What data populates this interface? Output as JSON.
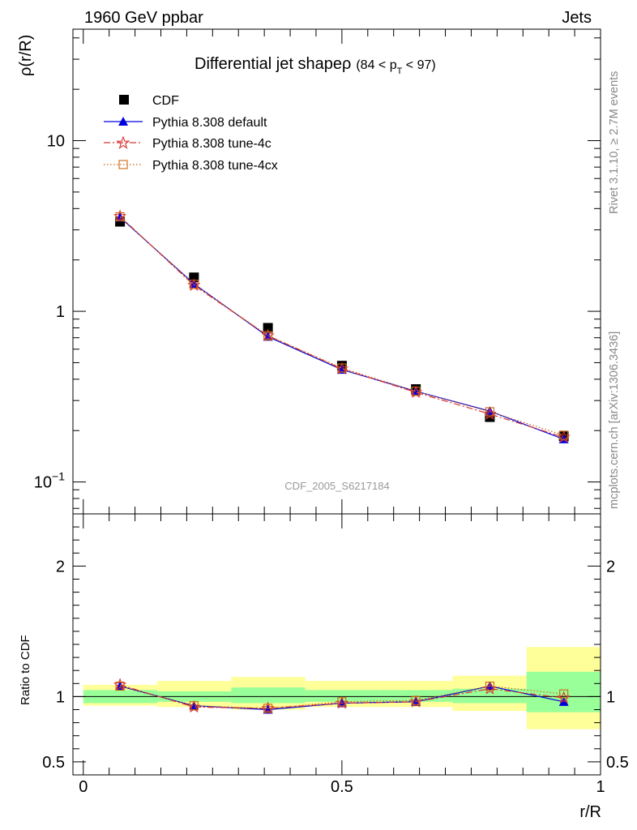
{
  "header": {
    "left": "1960 GeV ppbar",
    "right": "Jets"
  },
  "side": {
    "rivet": "Rivet 3.1.10, ≥ 2.7M events",
    "site": "mcplots.cern.ch [arXiv:1306.3436]"
  },
  "chart_data": [
    {
      "type": "line",
      "title": "Differential jet shapeρ",
      "subtitle_prefix": "(84 < p",
      "subtitle_sub": "T",
      "subtitle_suffix": " < 97)",
      "ylabel": "ρ(r/R)",
      "xlabel": "r/R",
      "watermark": "CDF_2005_S6217184",
      "yscale": "log",
      "xlim": [
        -0.02,
        1.0
      ],
      "ylim": [
        0.065,
        45
      ],
      "grid": false,
      "legend_position": "top-left",
      "yticks": [
        {
          "value": 0.1,
          "base": "10",
          "exp": "−1"
        },
        {
          "value": 1,
          "base": "1",
          "exp": ""
        },
        {
          "value": 10,
          "base": "10",
          "exp": ""
        }
      ],
      "series": [
        {
          "name": "CDF",
          "color": "#000000",
          "marker": "square",
          "line": "none",
          "x": [
            0.071,
            0.214,
            0.357,
            0.5,
            0.643,
            0.786,
            0.929
          ],
          "y": [
            3.35,
            1.58,
            0.8,
            0.48,
            0.35,
            0.24,
            0.185
          ]
        },
        {
          "name": "Pythia 8.308 default",
          "color": "#0000dd",
          "marker": "triangle",
          "line": "solid",
          "x": [
            0.071,
            0.214,
            0.357,
            0.5,
            0.643,
            0.786,
            0.929
          ],
          "y": [
            3.55,
            1.45,
            0.71,
            0.455,
            0.34,
            0.26,
            0.178
          ]
        },
        {
          "name": "Pythia 8.308 tune-4c",
          "color": "#dd3333",
          "marker": "star",
          "line": "dashdot",
          "x": [
            0.071,
            0.214,
            0.357,
            0.5,
            0.643,
            0.786,
            0.929
          ],
          "y": [
            3.6,
            1.42,
            0.72,
            0.46,
            0.335,
            0.25,
            0.183
          ]
        },
        {
          "name": "Pythia 8.308 tune-4cx",
          "color": "#cc6611",
          "marker": "open-square",
          "line": "dotted",
          "x": [
            0.071,
            0.214,
            0.357,
            0.5,
            0.643,
            0.786,
            0.929
          ],
          "y": [
            3.58,
            1.44,
            0.72,
            0.465,
            0.34,
            0.258,
            0.188
          ]
        }
      ]
    },
    {
      "type": "line",
      "ylabel": "Ratio to CDF",
      "xlabel": "r/R",
      "xlim": [
        -0.02,
        1.0
      ],
      "ylim": [
        0.4,
        2.4
      ],
      "yticks": [
        {
          "value": 0.5,
          "label": "0.5"
        },
        {
          "value": 1,
          "label": "1"
        },
        {
          "value": 2,
          "label": "2"
        }
      ],
      "xticks": [
        {
          "value": 0,
          "label": "0"
        },
        {
          "value": 0.5,
          "label": "0.5"
        },
        {
          "value": 1,
          "label": "1"
        }
      ],
      "reference_line": 1,
      "bands": {
        "inner_color": "#99ff99",
        "outer_color": "#ffff99",
        "bins": [
          {
            "lo": 0.0,
            "hi": 0.143,
            "inner": [
              0.95,
              1.05
            ],
            "outer": [
              0.93,
              1.09
            ]
          },
          {
            "lo": 0.143,
            "hi": 0.286,
            "inner": [
              0.96,
              1.04
            ],
            "outer": [
              0.92,
              1.12
            ]
          },
          {
            "lo": 0.286,
            "hi": 0.429,
            "inner": [
              0.95,
              1.07
            ],
            "outer": [
              0.9,
              1.15
            ]
          },
          {
            "lo": 0.429,
            "hi": 0.571,
            "inner": [
              0.96,
              1.05
            ],
            "outer": [
              0.92,
              1.12
            ]
          },
          {
            "lo": 0.571,
            "hi": 0.714,
            "inner": [
              0.96,
              1.05
            ],
            "outer": [
              0.92,
              1.12
            ]
          },
          {
            "lo": 0.714,
            "hi": 0.857,
            "inner": [
              0.95,
              1.06
            ],
            "outer": [
              0.89,
              1.16
            ]
          },
          {
            "lo": 0.857,
            "hi": 1.0,
            "inner": [
              0.88,
              1.19
            ],
            "outer": [
              0.75,
              1.38
            ]
          }
        ]
      },
      "series": [
        {
          "name": "Pythia 8.308 default",
          "color": "#0000dd",
          "marker": "triangle",
          "line": "solid",
          "x": [
            0.071,
            0.214,
            0.357,
            0.5,
            0.643,
            0.786,
            0.929
          ],
          "y": [
            1.08,
            0.93,
            0.9,
            0.95,
            0.96,
            1.08,
            0.96
          ]
        },
        {
          "name": "Pythia 8.308 tune-4c",
          "color": "#dd3333",
          "marker": "star",
          "line": "dashdot",
          "x": [
            0.071,
            0.214,
            0.357,
            0.5,
            0.643,
            0.786,
            0.929
          ],
          "y": [
            1.09,
            0.92,
            0.91,
            0.95,
            0.96,
            1.06,
            0.99
          ]
        },
        {
          "name": "Pythia 8.308 tune-4cx",
          "color": "#cc6611",
          "marker": "open-square",
          "line": "dotted",
          "x": [
            0.071,
            0.214,
            0.357,
            0.5,
            0.643,
            0.786,
            0.929
          ],
          "y": [
            1.08,
            0.93,
            0.91,
            0.96,
            0.97,
            1.08,
            1.02
          ]
        }
      ]
    }
  ]
}
